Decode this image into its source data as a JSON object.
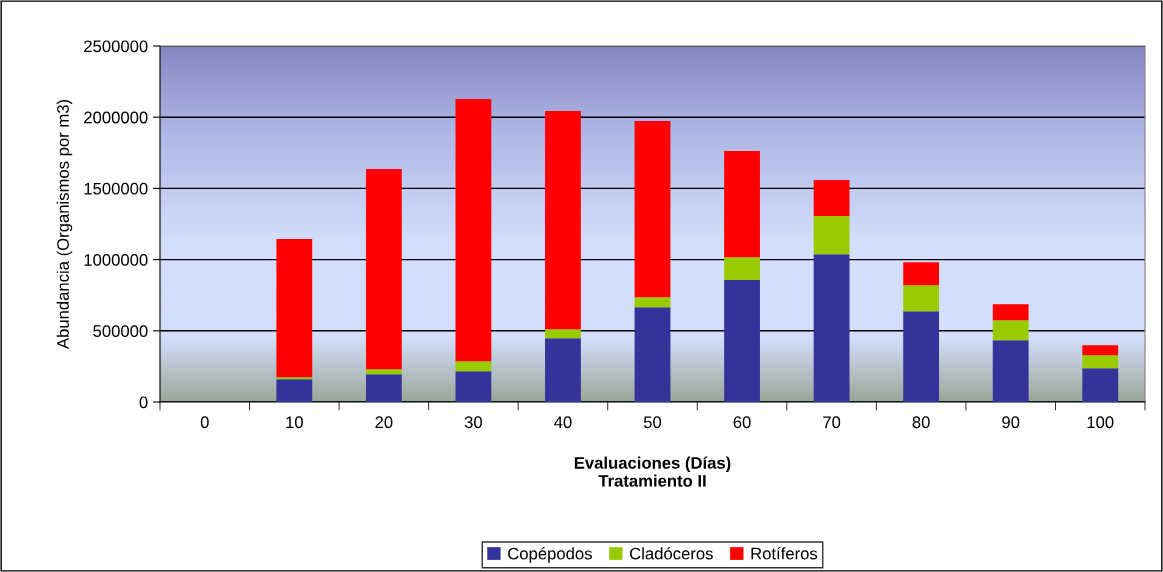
{
  "chart_data": {
    "type": "bar",
    "stacked": true,
    "xlabel": "Evaluaciones (Días)\nTratamiento II",
    "ylabel": "Abundancia (Organismos por m3)",
    "categories": [
      "0",
      "10",
      "20",
      "30",
      "40",
      "50",
      "60",
      "70",
      "80",
      "90",
      "100"
    ],
    "series": [
      {
        "name": "Copépodos",
        "color": "#333399",
        "values": [
          0,
          160000,
          195000,
          216000,
          448000,
          666000,
          856000,
          1038000,
          638000,
          434000,
          237000
        ]
      },
      {
        "name": "Cladóceros",
        "color": "#99cc00",
        "values": [
          0,
          13000,
          35000,
          70000,
          63000,
          70000,
          161000,
          268000,
          182000,
          140000,
          91000
        ]
      },
      {
        "name": "Rotíferos",
        "color": "#ff0000",
        "values": [
          0,
          971000,
          1406000,
          1842000,
          1533000,
          1238000,
          746000,
          253000,
          162000,
          113000,
          70000
        ]
      }
    ],
    "ylim": [
      0,
      2500000
    ],
    "yticks": [
      0,
      500000,
      1000000,
      1500000,
      2000000,
      2500000
    ],
    "grid": "y",
    "legend": "bottom"
  }
}
